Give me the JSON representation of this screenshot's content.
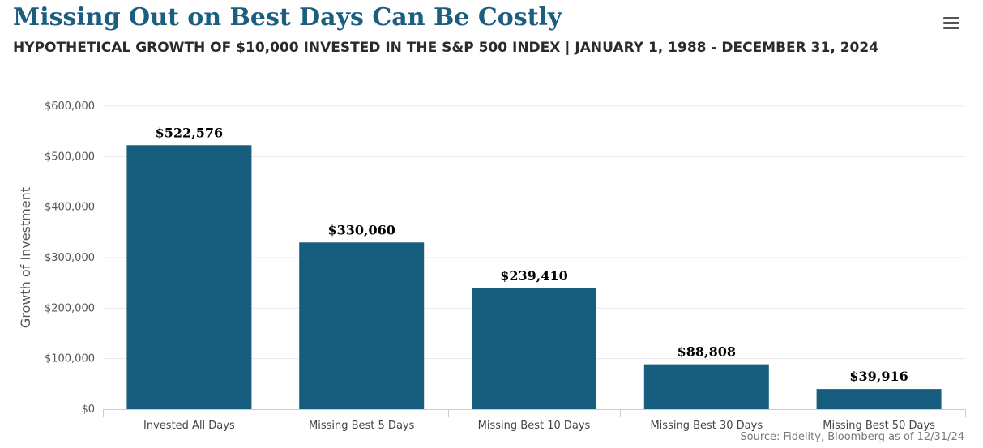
{
  "header": {
    "title": "Missing Out on Best Days Can Be Costly",
    "subtitle": "HYPOTHETICAL GROWTH OF $10,000 INVESTED IN THE S&P 500 INDEX | JANUARY 1, 1988 - DECEMBER 31, 2024",
    "menu_icon": "hamburger-menu-icon"
  },
  "footer": {
    "source": "Source: Fidelity, Bloomberg as of 12/31/24"
  },
  "chart_data": {
    "type": "bar",
    "title": "Missing Out on Best Days Can Be Costly",
    "subtitle": "HYPOTHETICAL GROWTH OF $10,000 INVESTED IN THE S&P 500 INDEX | JANUARY 1, 1988 - DECEMBER 31, 2024",
    "xlabel": "",
    "ylabel": "Growth of Investment",
    "categories": [
      "Invested All Days",
      "Missing Best 5 Days",
      "Missing Best 10 Days",
      "Missing Best 30 Days",
      "Missing Best 50 Days"
    ],
    "values": [
      522576,
      330060,
      239410,
      88808,
      39916
    ],
    "data_labels": [
      "$522,576",
      "$330,060",
      "$239,410",
      "$88,808",
      "$39,916"
    ],
    "ylim": [
      0,
      600000
    ],
    "yticks": [
      0,
      100000,
      200000,
      300000,
      400000,
      500000,
      600000
    ],
    "ytick_labels": [
      "$0",
      "$100,000",
      "$200,000",
      "$300,000",
      "$400,000",
      "$500,000",
      "$600,000"
    ],
    "grid": true,
    "legend": "none",
    "bar_color": "#175e7e"
  }
}
